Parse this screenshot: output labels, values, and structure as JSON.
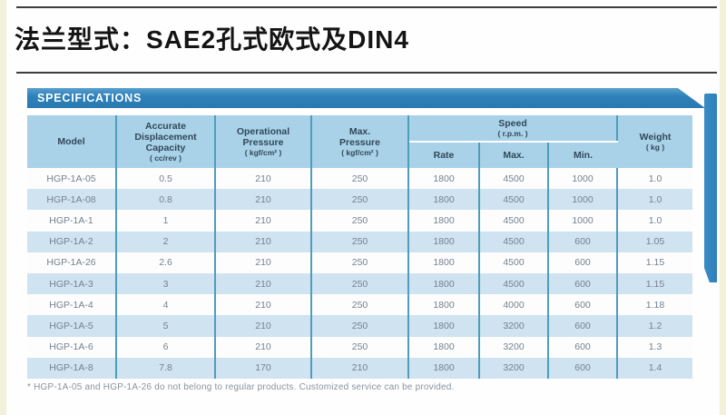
{
  "page": {
    "title": "法兰型式：SAE2孔式欧式及DIN4",
    "section_label": "SPECIFICATIONS",
    "footnote": "* HGP-1A-05 and HGP-1A-26 do not belong to regular products. Customized service can be provided."
  },
  "colors": {
    "banner_blue": "#2e81ba",
    "header_blue": "#a9d2e8",
    "row_alt_blue": "#cfe3f1",
    "gridline_teal": "#4e9dbd",
    "page_margin_cream": "#f4f1da",
    "cell_text_gray": "#75828e"
  },
  "table": {
    "columns": {
      "model": {
        "label": "Model"
      },
      "displacement": {
        "label": "Accurate Displacement Capacity",
        "unit": "( cc/rev )"
      },
      "operational_pressure": {
        "label": "Operational Pressure",
        "unit": "( kgf/cm² )"
      },
      "max_pressure": {
        "label": "Max. Pressure",
        "unit": "( kgf/cm² )"
      },
      "speed": {
        "label": "Speed",
        "unit": "( r.p.m. )",
        "sub_columns": {
          "rate": "Rate",
          "max": "Max.",
          "min": "Min."
        }
      },
      "weight": {
        "label": "Weight",
        "unit": "( kg )"
      }
    },
    "row_keys": [
      "model",
      "displacement",
      "operational_pressure",
      "max_pressure",
      "speed_rate",
      "speed_max",
      "speed_min",
      "weight"
    ],
    "rows": [
      {
        "model": "HGP-1A-05",
        "displacement": "0.5",
        "operational_pressure": "210",
        "max_pressure": "250",
        "speed_rate": "1800",
        "speed_max": "4500",
        "speed_min": "1000",
        "weight": "1.0"
      },
      {
        "model": "HGP-1A-08",
        "displacement": "0.8",
        "operational_pressure": "210",
        "max_pressure": "250",
        "speed_rate": "1800",
        "speed_max": "4500",
        "speed_min": "1000",
        "weight": "1.0"
      },
      {
        "model": "HGP-1A-1",
        "displacement": "1",
        "operational_pressure": "210",
        "max_pressure": "250",
        "speed_rate": "1800",
        "speed_max": "4500",
        "speed_min": "1000",
        "weight": "1.0"
      },
      {
        "model": "HGP-1A-2",
        "displacement": "2",
        "operational_pressure": "210",
        "max_pressure": "250",
        "speed_rate": "1800",
        "speed_max": "4500",
        "speed_min": "600",
        "weight": "1.05"
      },
      {
        "model": "HGP-1A-26",
        "displacement": "2.6",
        "operational_pressure": "210",
        "max_pressure": "250",
        "speed_rate": "1800",
        "speed_max": "4500",
        "speed_min": "600",
        "weight": "1.15"
      },
      {
        "model": "HGP-1A-3",
        "displacement": "3",
        "operational_pressure": "210",
        "max_pressure": "250",
        "speed_rate": "1800",
        "speed_max": "4500",
        "speed_min": "600",
        "weight": "1.15"
      },
      {
        "model": "HGP-1A-4",
        "displacement": "4",
        "operational_pressure": "210",
        "max_pressure": "250",
        "speed_rate": "1800",
        "speed_max": "4000",
        "speed_min": "600",
        "weight": "1.18"
      },
      {
        "model": "HGP-1A-5",
        "displacement": "5",
        "operational_pressure": "210",
        "max_pressure": "250",
        "speed_rate": "1800",
        "speed_max": "3200",
        "speed_min": "600",
        "weight": "1.2"
      },
      {
        "model": "HGP-1A-6",
        "displacement": "6",
        "operational_pressure": "210",
        "max_pressure": "250",
        "speed_rate": "1800",
        "speed_max": "3200",
        "speed_min": "600",
        "weight": "1.3"
      },
      {
        "model": "HGP-1A-8",
        "displacement": "7.8",
        "operational_pressure": "170",
        "max_pressure": "210",
        "speed_rate": "1800",
        "speed_max": "3200",
        "speed_min": "600",
        "weight": "1.4"
      }
    ]
  }
}
